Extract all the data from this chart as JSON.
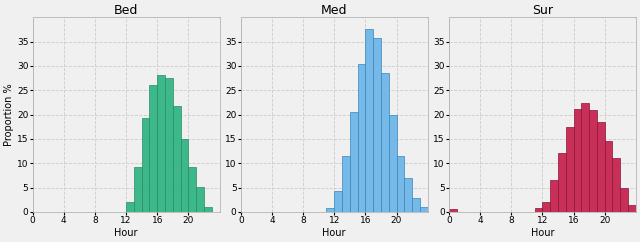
{
  "panels": [
    {
      "title": "Bed",
      "color": "#3cb88a",
      "edgecolor": "#2a8a65",
      "bars": [
        {
          "hour": 0,
          "val": 0
        },
        {
          "hour": 1,
          "val": 0
        },
        {
          "hour": 2,
          "val": 0
        },
        {
          "hour": 3,
          "val": 0
        },
        {
          "hour": 4,
          "val": 0
        },
        {
          "hour": 5,
          "val": 0
        },
        {
          "hour": 6,
          "val": 0
        },
        {
          "hour": 7,
          "val": 0
        },
        {
          "hour": 8,
          "val": 0
        },
        {
          "hour": 9,
          "val": 0
        },
        {
          "hour": 10,
          "val": 0
        },
        {
          "hour": 11,
          "val": 0
        },
        {
          "hour": 12,
          "val": 2.0
        },
        {
          "hour": 13,
          "val": 9.2
        },
        {
          "hour": 14,
          "val": 19.3
        },
        {
          "hour": 15,
          "val": 26.1
        },
        {
          "hour": 16,
          "val": 28.2
        },
        {
          "hour": 17,
          "val": 27.6
        },
        {
          "hour": 18,
          "val": 21.8
        },
        {
          "hour": 19,
          "val": 15.0
        },
        {
          "hour": 20,
          "val": 9.3
        },
        {
          "hour": 21,
          "val": 5.2
        },
        {
          "hour": 22,
          "val": 1.0
        },
        {
          "hour": 23,
          "val": 0
        }
      ],
      "ylim": [
        0,
        40
      ],
      "yticks": [
        0,
        5,
        10,
        15,
        20,
        25,
        30,
        35
      ],
      "show_ylabel": true
    },
    {
      "title": "Med",
      "color": "#74b9e8",
      "edgecolor": "#3a85b8",
      "bars": [
        {
          "hour": 0,
          "val": 0
        },
        {
          "hour": 1,
          "val": 0
        },
        {
          "hour": 2,
          "val": 0
        },
        {
          "hour": 3,
          "val": 0
        },
        {
          "hour": 4,
          "val": 0
        },
        {
          "hour": 5,
          "val": 0
        },
        {
          "hour": 6,
          "val": 0
        },
        {
          "hour": 7,
          "val": 0
        },
        {
          "hour": 8,
          "val": 0
        },
        {
          "hour": 9,
          "val": 0
        },
        {
          "hour": 10,
          "val": 0
        },
        {
          "hour": 11,
          "val": 0.8
        },
        {
          "hour": 12,
          "val": 4.2
        },
        {
          "hour": 13,
          "val": 11.5
        },
        {
          "hour": 14,
          "val": 20.5
        },
        {
          "hour": 15,
          "val": 30.3
        },
        {
          "hour": 16,
          "val": 37.5
        },
        {
          "hour": 17,
          "val": 35.8
        },
        {
          "hour": 18,
          "val": 28.5
        },
        {
          "hour": 19,
          "val": 20.0
        },
        {
          "hour": 20,
          "val": 11.5
        },
        {
          "hour": 21,
          "val": 7.0
        },
        {
          "hour": 22,
          "val": 2.8
        },
        {
          "hour": 23,
          "val": 1.0
        }
      ],
      "ylim": [
        0,
        40
      ],
      "yticks": [
        0,
        5,
        10,
        15,
        20,
        25,
        30,
        35
      ],
      "show_ylabel": false
    },
    {
      "title": "Sur",
      "color": "#c8305a",
      "edgecolor": "#8a1535",
      "bars": [
        {
          "hour": 0,
          "val": 0.5
        },
        {
          "hour": 1,
          "val": 0
        },
        {
          "hour": 2,
          "val": 0
        },
        {
          "hour": 3,
          "val": 0
        },
        {
          "hour": 4,
          "val": 0
        },
        {
          "hour": 5,
          "val": 0
        },
        {
          "hour": 6,
          "val": 0
        },
        {
          "hour": 7,
          "val": 0
        },
        {
          "hour": 8,
          "val": 0
        },
        {
          "hour": 9,
          "val": 0
        },
        {
          "hour": 10,
          "val": 0
        },
        {
          "hour": 11,
          "val": 0.8
        },
        {
          "hour": 12,
          "val": 2.0
        },
        {
          "hour": 13,
          "val": 6.5
        },
        {
          "hour": 14,
          "val": 12.0
        },
        {
          "hour": 15,
          "val": 17.5
        },
        {
          "hour": 16,
          "val": 21.2
        },
        {
          "hour": 17,
          "val": 22.3
        },
        {
          "hour": 18,
          "val": 21.0
        },
        {
          "hour": 19,
          "val": 18.5
        },
        {
          "hour": 20,
          "val": 14.5
        },
        {
          "hour": 21,
          "val": 11.0
        },
        {
          "hour": 22,
          "val": 5.0
        },
        {
          "hour": 23,
          "val": 1.5
        }
      ],
      "ylim": [
        0,
        40
      ],
      "yticks": [
        0,
        5,
        10,
        15,
        20,
        25,
        30,
        35
      ],
      "show_ylabel": false
    }
  ],
  "xlabel": "Hour",
  "ylabel": "Proportion %",
  "xticks": [
    0,
    4,
    8,
    12,
    16,
    20
  ],
  "background_color": "#f0f0f0",
  "grid_color": "#cccccc",
  "title_fontsize": 9,
  "label_fontsize": 7,
  "tick_fontsize": 6.5
}
